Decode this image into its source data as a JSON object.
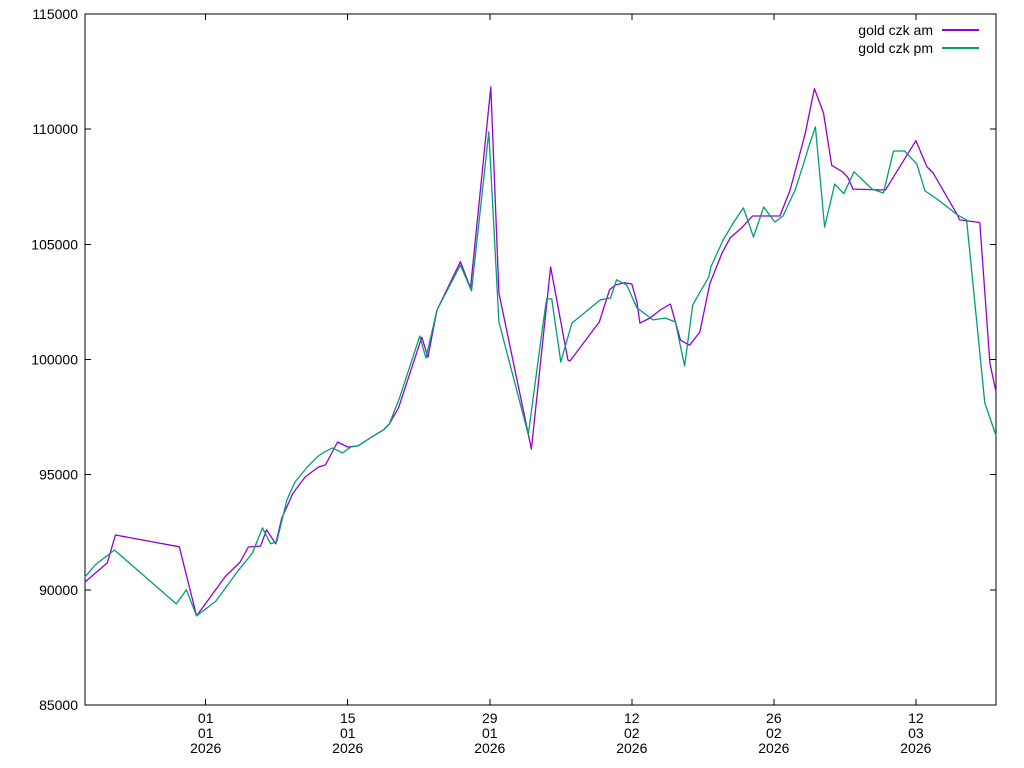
{
  "chart_data": {
    "type": "line",
    "title": "",
    "background_color": "#ffffff",
    "axis_color": "#000000",
    "grid": false,
    "legend": {
      "position": "top-right-inside",
      "entries": [
        "gold czk am",
        "gold czk pm"
      ]
    },
    "x_axis": {
      "unit": "days from first observation",
      "range_days": [
        0,
        89.8
      ],
      "ticks": [
        {
          "day": 11.9,
          "lines": [
            "01",
            "01",
            "2026"
          ]
        },
        {
          "day": 25.9,
          "lines": [
            "15",
            "01",
            "2026"
          ]
        },
        {
          "day": 39.9,
          "lines": [
            "29",
            "01",
            "2026"
          ]
        },
        {
          "day": 53.9,
          "lines": [
            "12",
            "02",
            "2026"
          ]
        },
        {
          "day": 67.9,
          "lines": [
            "26",
            "02",
            "2026"
          ]
        },
        {
          "day": 81.9,
          "lines": [
            "12",
            "03",
            "2026"
          ]
        }
      ]
    },
    "y_axis": {
      "unit": "CZK",
      "min": 85000,
      "max": 115000,
      "tick_step": 5000,
      "ticks": [
        85000,
        90000,
        95000,
        100000,
        105000,
        110000,
        115000
      ]
    },
    "series": [
      {
        "name": "gold czk am",
        "color": "#9400d3",
        "points": [
          [
            0.0,
            90340
          ],
          [
            2.2,
            91170
          ],
          [
            3.0,
            92380
          ],
          [
            9.3,
            91870
          ],
          [
            11.0,
            88870
          ],
          [
            13.8,
            90560
          ],
          [
            15.3,
            91210
          ],
          [
            16.1,
            91860
          ],
          [
            17.3,
            91900
          ],
          [
            17.9,
            92600
          ],
          [
            18.8,
            92000
          ],
          [
            19.4,
            93120
          ],
          [
            20.5,
            94200
          ],
          [
            21.7,
            94900
          ],
          [
            23.0,
            95330
          ],
          [
            23.7,
            95420
          ],
          [
            24.9,
            96420
          ],
          [
            25.9,
            96200
          ],
          [
            26.9,
            96250
          ],
          [
            28.1,
            96590
          ],
          [
            29.4,
            96940
          ],
          [
            30.0,
            97200
          ],
          [
            30.9,
            97900
          ],
          [
            33.2,
            100970
          ],
          [
            33.8,
            100100
          ],
          [
            34.7,
            102150
          ],
          [
            37.0,
            104250
          ],
          [
            38.0,
            103100
          ],
          [
            40.0,
            111830
          ],
          [
            40.8,
            102890
          ],
          [
            44.0,
            96110
          ],
          [
            45.9,
            104020
          ],
          [
            47.6,
            99980
          ],
          [
            47.8,
            99930
          ],
          [
            49.5,
            100930
          ],
          [
            50.7,
            101630
          ],
          [
            51.7,
            103020
          ],
          [
            52.3,
            103240
          ],
          [
            53.2,
            103330
          ],
          [
            53.9,
            103280
          ],
          [
            54.4,
            102500
          ],
          [
            54.7,
            101580
          ],
          [
            55.7,
            101800
          ],
          [
            56.7,
            102150
          ],
          [
            57.7,
            102410
          ],
          [
            58.7,
            100840
          ],
          [
            59.6,
            100620
          ],
          [
            60.6,
            101190
          ],
          [
            61.6,
            103300
          ],
          [
            62.8,
            104630
          ],
          [
            63.6,
            105280
          ],
          [
            64.8,
            105750
          ],
          [
            65.8,
            106230
          ],
          [
            68.5,
            106230
          ],
          [
            69.5,
            107360
          ],
          [
            70.3,
            108660
          ],
          [
            71.0,
            109830
          ],
          [
            71.9,
            111760
          ],
          [
            72.8,
            110700
          ],
          [
            73.6,
            108430
          ],
          [
            74.7,
            108140
          ],
          [
            75.2,
            107900
          ],
          [
            75.7,
            107400
          ],
          [
            78.9,
            107360
          ],
          [
            81.9,
            109500
          ],
          [
            83.0,
            108360
          ],
          [
            83.6,
            108100
          ],
          [
            86.0,
            106280
          ],
          [
            86.2,
            106060
          ],
          [
            88.2,
            105950
          ],
          [
            89.2,
            99850
          ],
          [
            89.8,
            98590
          ]
        ]
      },
      {
        "name": "gold czk pm",
        "color": "#009e73",
        "points": [
          [
            0.0,
            90560
          ],
          [
            1.0,
            91080
          ],
          [
            2.9,
            91730
          ],
          [
            9.0,
            89390
          ],
          [
            10.0,
            90000
          ],
          [
            11.0,
            88870
          ],
          [
            12.9,
            89510
          ],
          [
            15.0,
            90780
          ],
          [
            16.5,
            91600
          ],
          [
            17.5,
            92690
          ],
          [
            18.3,
            92000
          ],
          [
            18.9,
            92080
          ],
          [
            19.9,
            93900
          ],
          [
            20.7,
            94680
          ],
          [
            21.9,
            95330
          ],
          [
            22.9,
            95770
          ],
          [
            23.6,
            95990
          ],
          [
            24.4,
            96160
          ],
          [
            25.4,
            95940
          ],
          [
            26.2,
            96200
          ],
          [
            26.9,
            96250
          ],
          [
            28.1,
            96590
          ],
          [
            29.4,
            96940
          ],
          [
            30.0,
            97200
          ],
          [
            31.0,
            98330
          ],
          [
            33.0,
            101020
          ],
          [
            33.6,
            100060
          ],
          [
            34.7,
            102150
          ],
          [
            37.0,
            104100
          ],
          [
            38.1,
            102980
          ],
          [
            39.8,
            109880
          ],
          [
            40.8,
            101630
          ],
          [
            43.7,
            96740
          ],
          [
            45.1,
            101370
          ],
          [
            45.5,
            102630
          ],
          [
            46.0,
            102630
          ],
          [
            46.9,
            99890
          ],
          [
            48.0,
            101580
          ],
          [
            50.8,
            102590
          ],
          [
            51.8,
            102670
          ],
          [
            52.4,
            103460
          ],
          [
            53.4,
            103240
          ],
          [
            54.4,
            102240
          ],
          [
            56.0,
            101720
          ],
          [
            57.2,
            101800
          ],
          [
            58.2,
            101630
          ],
          [
            59.1,
            99720
          ],
          [
            59.9,
            102370
          ],
          [
            61.5,
            103590
          ],
          [
            61.7,
            104020
          ],
          [
            62.9,
            105190
          ],
          [
            63.9,
            105930
          ],
          [
            64.9,
            106580
          ],
          [
            65.9,
            105320
          ],
          [
            66.9,
            106620
          ],
          [
            68.0,
            105970
          ],
          [
            68.8,
            106230
          ],
          [
            70.0,
            107360
          ],
          [
            70.8,
            108440
          ],
          [
            71.3,
            109180
          ],
          [
            72.0,
            110100
          ],
          [
            72.9,
            105750
          ],
          [
            73.9,
            107620
          ],
          [
            74.8,
            107200
          ],
          [
            75.8,
            108150
          ],
          [
            77.6,
            107400
          ],
          [
            78.7,
            107230
          ],
          [
            79.7,
            109050
          ],
          [
            80.8,
            109050
          ],
          [
            82.0,
            108480
          ],
          [
            82.8,
            107320
          ],
          [
            84.1,
            106930
          ],
          [
            86.0,
            106280
          ],
          [
            86.9,
            106060
          ],
          [
            88.7,
            98110
          ],
          [
            89.8,
            96700
          ]
        ]
      }
    ]
  }
}
